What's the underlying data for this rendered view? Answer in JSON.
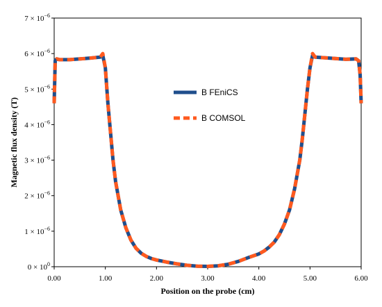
{
  "chart_data": {
    "type": "line",
    "xlabel": "Position on the probe (cm)",
    "ylabel": "Magnetic flux density (T)",
    "xlim": [
      0,
      6
    ],
    "ylim": [
      0,
      7e-06
    ],
    "x_ticks": [
      "0.00",
      "1.00",
      "2.00",
      "3.00",
      "4.00",
      "5.00",
      "6.00"
    ],
    "y_ticks": [
      {
        "mantissa": "0",
        "exp": "0"
      },
      {
        "mantissa": "1",
        "exp": "−6"
      },
      {
        "mantissa": "2",
        "exp": "−6"
      },
      {
        "mantissa": "3",
        "exp": "−6"
      },
      {
        "mantissa": "4",
        "exp": "−6"
      },
      {
        "mantissa": "5",
        "exp": "−6"
      },
      {
        "mantissa": "6",
        "exp": "−6"
      },
      {
        "mantissa": "7",
        "exp": "−6"
      }
    ],
    "grid": false,
    "legend_position": "center-right",
    "x": [
      0.0,
      0.02,
      0.05,
      0.1,
      0.3,
      0.6,
      0.9,
      0.95,
      1.0,
      1.05,
      1.1,
      1.15,
      1.2,
      1.3,
      1.4,
      1.5,
      1.6,
      1.7,
      1.8,
      1.9,
      2.0,
      2.2,
      2.4,
      2.6,
      2.8,
      3.0,
      3.2,
      3.4,
      3.6,
      3.8,
      4.0,
      4.1,
      4.2,
      4.3,
      4.4,
      4.5,
      4.6,
      4.7,
      4.8,
      4.85,
      4.9,
      4.95,
      5.0,
      5.05,
      5.1,
      5.4,
      5.7,
      5.9,
      5.95,
      5.98,
      6.0
    ],
    "series": [
      {
        "name": "B FEniCS",
        "color": "#1f4e8c",
        "style": "solid",
        "values": [
          4.6e-06,
          5.8e-06,
          5.85e-06,
          5.83e-06,
          5.83e-06,
          5.86e-06,
          5.9e-06,
          5.95e-06,
          5.6e-06,
          4.6e-06,
          3.8e-06,
          3e-06,
          2.4e-06,
          1.6e-06,
          1.1e-06,
          7.5e-07,
          5.2e-07,
          3.8e-07,
          2.9e-07,
          2.3e-07,
          1.9e-07,
          1.3e-07,
          8e-08,
          4e-08,
          1.5e-08,
          1e-08,
          2.5e-08,
          7e-08,
          1.5e-07,
          2.6e-07,
          3.6e-07,
          4.4e-07,
          5.5e-07,
          6.9e-07,
          9e-07,
          1.2e-06,
          1.6e-06,
          2.2e-06,
          3e-06,
          3.6e-06,
          4.3e-06,
          5e-06,
          5.6e-06,
          5.95e-06,
          5.9e-06,
          5.87e-06,
          5.84e-06,
          5.85e-06,
          5.8e-06,
          5.4e-06,
          4.6e-06
        ]
      },
      {
        "name": "B COMSOL",
        "color": "#ff5a1f",
        "style": "dashed",
        "values": [
          4.6e-06,
          5.8e-06,
          5.85e-06,
          5.83e-06,
          5.83e-06,
          5.86e-06,
          5.9e-06,
          6e-06,
          5.6e-06,
          4.6e-06,
          3.8e-06,
          3e-06,
          2.4e-06,
          1.6e-06,
          1.1e-06,
          7.5e-07,
          5.2e-07,
          3.8e-07,
          2.9e-07,
          2.3e-07,
          1.9e-07,
          1.3e-07,
          8e-08,
          4e-08,
          1.5e-08,
          1e-08,
          2.5e-08,
          7e-08,
          1.5e-07,
          2.6e-07,
          3.6e-07,
          4.4e-07,
          5.5e-07,
          6.9e-07,
          9e-07,
          1.2e-06,
          1.6e-06,
          2.2e-06,
          3e-06,
          3.6e-06,
          4.3e-06,
          5e-06,
          5.6e-06,
          6e-06,
          5.9e-06,
          5.87e-06,
          5.84e-06,
          5.85e-06,
          5.8e-06,
          5.4e-06,
          4.6e-06
        ]
      }
    ]
  }
}
